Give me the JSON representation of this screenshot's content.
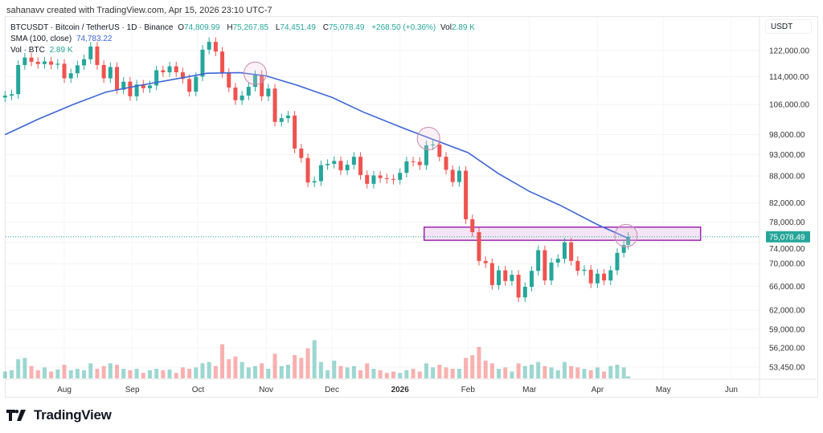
{
  "credit": "sahanavv created with TradingView.com, Apr 15, 2026 23:10 UTC-7",
  "legend": {
    "symbol": "BTCUSDT · Bitcoin / TetherUS · 1D · Binance",
    "o_label": "O",
    "o": "74,809.99",
    "h_label": "H",
    "h": "75,267.85",
    "l_label": "L",
    "l": "74,451.49",
    "c_label": "C",
    "c": "75,078.49",
    "change": "+268.50 (+0.36%)",
    "vol_label": "Vol",
    "vol": "2.89 K",
    "sma_label": "SMA (100, close)",
    "sma_value": "74,783.22",
    "volume_label": "Vol · BTC",
    "volume_value": "2.89 K"
  },
  "logo": "TradingView",
  "colors": {
    "up": "#26a69a",
    "down": "#ef5350",
    "sma": "#3a66d6",
    "zone_border": "#9c27b0",
    "zone_fill": "#f3e5f5",
    "circle": "#c98bb0"
  },
  "chart_data": {
    "type": "candlestick",
    "y_scale": "log",
    "currency": "USDT",
    "last_price": "75,078.49",
    "y_ticks": [
      "122,000.00",
      "114,000.00",
      "106,000.00",
      "98,000.00",
      "93,000.00",
      "88,000.00",
      "82,000.00",
      "78,000.00",
      "74,000.00",
      "70,000.00",
      "66,000.00",
      "62,000.00",
      "59,000.00",
      "56,200.00",
      "53,450.00"
    ],
    "x_ticks": [
      {
        "label": "Aug",
        "date": "2025-08-01"
      },
      {
        "label": "Sep",
        "date": "2025-09-01"
      },
      {
        "label": "Oct",
        "date": "2025-10-01"
      },
      {
        "label": "Nov",
        "date": "2025-11-01"
      },
      {
        "label": "Dec",
        "date": "2025-12-01"
      },
      {
        "label": "2026",
        "date": "2026-01-01",
        "bold": true
      },
      {
        "label": "Feb",
        "date": "2026-02-01"
      },
      {
        "label": "Mar",
        "date": "2026-03-01"
      },
      {
        "label": "Apr",
        "date": "2026-04-01"
      },
      {
        "label": "May",
        "date": "2026-05-01"
      },
      {
        "label": "Jun",
        "date": "2026-06-01"
      }
    ],
    "candles_date_close_volK": [
      [
        "2025-07-05",
        108500,
        10
      ],
      [
        "2025-07-08",
        108900,
        12
      ],
      [
        "2025-07-11",
        117500,
        28
      ],
      [
        "2025-07-14",
        119800,
        30
      ],
      [
        "2025-07-17",
        118500,
        18
      ],
      [
        "2025-07-20",
        117800,
        12
      ],
      [
        "2025-07-23",
        118600,
        16
      ],
      [
        "2025-07-26",
        117600,
        10
      ],
      [
        "2025-07-29",
        117900,
        13
      ],
      [
        "2025-08-01",
        113500,
        20
      ],
      [
        "2025-08-04",
        115000,
        12
      ],
      [
        "2025-08-07",
        117400,
        14
      ],
      [
        "2025-08-10",
        119300,
        12
      ],
      [
        "2025-08-13",
        123300,
        22
      ],
      [
        "2025-08-16",
        117500,
        14
      ],
      [
        "2025-08-19",
        113500,
        18
      ],
      [
        "2025-08-22",
        116900,
        22
      ],
      [
        "2025-08-25",
        110200,
        20
      ],
      [
        "2025-08-28",
        112500,
        14
      ],
      [
        "2025-08-31",
        108300,
        12
      ],
      [
        "2025-09-03",
        111700,
        14
      ],
      [
        "2025-09-06",
        110600,
        8
      ],
      [
        "2025-09-09",
        111400,
        12
      ],
      [
        "2025-09-12",
        115900,
        14
      ],
      [
        "2025-09-15",
        115300,
        12
      ],
      [
        "2025-09-18",
        117100,
        13
      ],
      [
        "2025-09-21",
        115300,
        8
      ],
      [
        "2025-09-24",
        113300,
        16
      ],
      [
        "2025-09-27",
        109600,
        14
      ],
      [
        "2025-09-30",
        114000,
        16
      ],
      [
        "2025-10-03",
        122300,
        22
      ],
      [
        "2025-10-06",
        124800,
        24
      ],
      [
        "2025-10-09",
        121700,
        18
      ],
      [
        "2025-10-12",
        115100,
        50
      ],
      [
        "2025-10-15",
        110800,
        28
      ],
      [
        "2025-10-18",
        107200,
        32
      ],
      [
        "2025-10-21",
        108500,
        24
      ],
      [
        "2025-10-24",
        111000,
        16
      ],
      [
        "2025-10-27",
        114500,
        18
      ],
      [
        "2025-10-30",
        108300,
        22
      ],
      [
        "2025-11-02",
        110500,
        14
      ],
      [
        "2025-11-05",
        101300,
        36
      ],
      [
        "2025-11-08",
        102300,
        18
      ],
      [
        "2025-11-11",
        103000,
        20
      ],
      [
        "2025-11-14",
        94500,
        34
      ],
      [
        "2025-11-17",
        92200,
        30
      ],
      [
        "2025-11-20",
        86500,
        44
      ],
      [
        "2025-11-23",
        86800,
        56
      ],
      [
        "2025-11-26",
        90500,
        24
      ],
      [
        "2025-11-29",
        90800,
        12
      ],
      [
        "2025-12-02",
        91500,
        26
      ],
      [
        "2025-12-05",
        89300,
        18
      ],
      [
        "2025-12-08",
        90600,
        16
      ],
      [
        "2025-12-11",
        92500,
        18
      ],
      [
        "2025-12-14",
        88200,
        12
      ],
      [
        "2025-12-17",
        86200,
        22
      ],
      [
        "2025-12-20",
        88100,
        14
      ],
      [
        "2025-12-23",
        87500,
        12
      ],
      [
        "2025-12-26",
        87300,
        8
      ],
      [
        "2025-12-29",
        87100,
        10
      ],
      [
        "2026-01-01",
        88700,
        8
      ],
      [
        "2026-01-04",
        91400,
        12
      ],
      [
        "2026-01-07",
        91300,
        14
      ],
      [
        "2026-01-10",
        90500,
        10
      ],
      [
        "2026-01-13",
        95300,
        22
      ],
      [
        "2026-01-16",
        95500,
        16
      ],
      [
        "2026-01-19",
        92500,
        20
      ],
      [
        "2026-01-22",
        89400,
        16
      ],
      [
        "2026-01-25",
        86600,
        14
      ],
      [
        "2026-01-28",
        89200,
        14
      ],
      [
        "2026-01-31",
        78600,
        30
      ],
      [
        "2026-02-03",
        76000,
        34
      ],
      [
        "2026-02-06",
        70500,
        46
      ],
      [
        "2026-02-09",
        70100,
        26
      ],
      [
        "2026-02-12",
        66200,
        22
      ],
      [
        "2026-02-15",
        68800,
        14
      ],
      [
        "2026-02-18",
        66900,
        16
      ],
      [
        "2026-02-21",
        68000,
        10
      ],
      [
        "2026-02-24",
        64100,
        22
      ],
      [
        "2026-02-27",
        65900,
        18
      ],
      [
        "2026-03-02",
        68700,
        20
      ],
      [
        "2026-03-05",
        72500,
        24
      ],
      [
        "2026-03-08",
        67000,
        18
      ],
      [
        "2026-03-11",
        70200,
        16
      ],
      [
        "2026-03-14",
        70900,
        12
      ],
      [
        "2026-03-17",
        74000,
        24
      ],
      [
        "2026-03-20",
        70500,
        18
      ],
      [
        "2026-03-23",
        68700,
        16
      ],
      [
        "2026-03-26",
        68900,
        14
      ],
      [
        "2026-03-29",
        66500,
        12
      ],
      [
        "2026-04-01",
        68200,
        16
      ],
      [
        "2026-04-04",
        67000,
        10
      ],
      [
        "2026-04-07",
        68800,
        18
      ],
      [
        "2026-04-10",
        72000,
        20
      ],
      [
        "2026-04-13",
        73500,
        16
      ],
      [
        "2026-04-15",
        75078.49,
        3
      ]
    ],
    "sma_100": [
      [
        "2025-07-05",
        98000
      ],
      [
        "2025-07-20",
        102000
      ],
      [
        "2025-08-05",
        106000
      ],
      [
        "2025-08-20",
        109500
      ],
      [
        "2025-09-05",
        111500
      ],
      [
        "2025-09-20",
        113200
      ],
      [
        "2025-10-05",
        115000
      ],
      [
        "2025-10-20",
        115200
      ],
      [
        "2025-11-01",
        114200
      ],
      [
        "2025-11-15",
        111500
      ],
      [
        "2025-12-01",
        108000
      ],
      [
        "2025-12-15",
        104000
      ],
      [
        "2026-01-01",
        100000
      ],
      [
        "2026-01-15",
        97000
      ],
      [
        "2026-02-01",
        93500
      ],
      [
        "2026-02-15",
        88500
      ],
      [
        "2026-03-01",
        84500
      ],
      [
        "2026-03-15",
        81500
      ],
      [
        "2026-04-01",
        77500
      ],
      [
        "2026-04-15",
        74783.22
      ]
    ],
    "annotations": {
      "resistance_zone": {
        "from_date": "2026-01-12",
        "to_date": "2026-05-18",
        "low": 74400,
        "high": 77000
      },
      "circles": [
        {
          "date": "2025-10-27",
          "price": 115000
        },
        {
          "date": "2026-01-14",
          "price": 97000
        },
        {
          "date": "2026-04-14",
          "price": 75300
        }
      ]
    }
  }
}
